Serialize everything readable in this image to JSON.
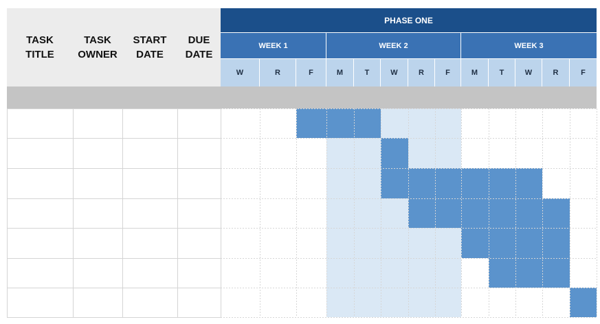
{
  "headers": {
    "task_title": "TASK\nTITLE",
    "task_owner": "TASK\nOWNER",
    "start_date": "START\nDATE",
    "due_date": "DUE\nDATE"
  },
  "phase": "PHASE ONE",
  "weeks": [
    "WEEK 1",
    "WEEK 2",
    "WEEK 3"
  ],
  "days": [
    "W",
    "R",
    "F",
    "M",
    "T",
    "W",
    "R",
    "F",
    "M",
    "T",
    "W",
    "R",
    "F"
  ],
  "colors": {
    "phase": "#1b4f8a",
    "week": "#3a72b4",
    "day": "#bcd4ec",
    "task_bar": "#5b93cc",
    "week2_shade": "#dae8f5",
    "grey_band": "#c4c4c4",
    "header_grey": "#ececec"
  },
  "week_shading": {
    "row_start": 0,
    "start_day": 3,
    "end_day": 7
  },
  "tasks": [
    {
      "row": 0,
      "start_day": 2,
      "end_day": 4
    },
    {
      "row": 1,
      "start_day": 5,
      "end_day": 5
    },
    {
      "row": 2,
      "start_day": 5,
      "end_day": 10
    },
    {
      "row": 3,
      "start_day": 6,
      "end_day": 11
    },
    {
      "row": 4,
      "start_day": 8,
      "end_day": 11
    },
    {
      "row": 5,
      "start_day": 9,
      "end_day": 11
    },
    {
      "row": 6,
      "start_day": 12,
      "end_day": 12
    }
  ],
  "row_count": 7
}
